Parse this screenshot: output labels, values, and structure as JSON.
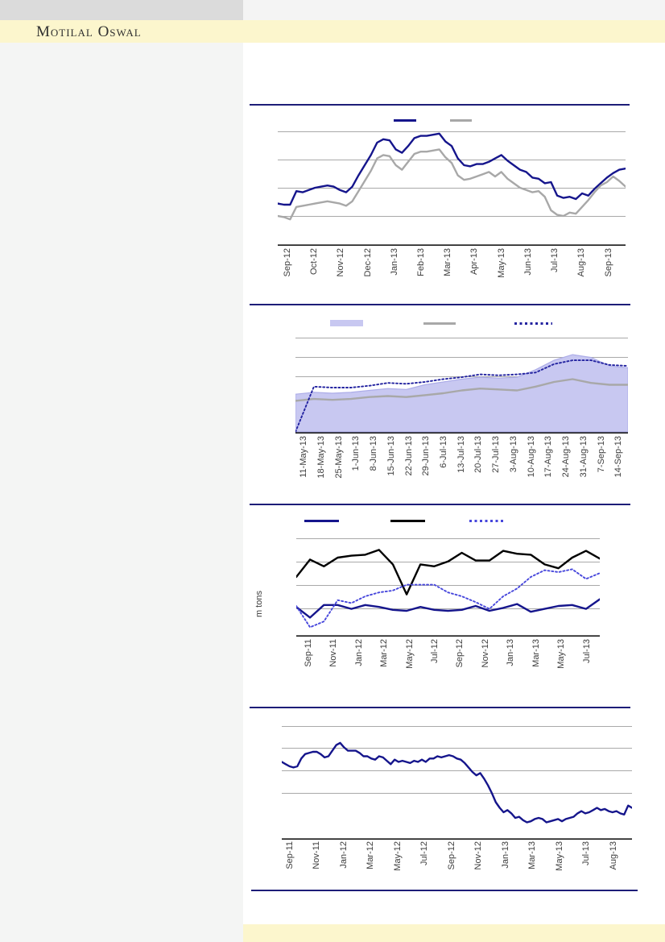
{
  "brand": {
    "name": "Motilal Oswal"
  },
  "palette": {
    "navy": "#15158c",
    "gray": "#a8a8a8",
    "black": "#000000",
    "dotted_navy": "#2323a0",
    "dotted_blue": "#4747dc",
    "lavender": "#c8c8f1",
    "lavender_edge": "#adade8",
    "gridline": "#a9a9a9",
    "axis_black": "#1a1a1a",
    "separator_navy": "#1d1d78",
    "band_yellow": "#fcf6cd",
    "sidebar_gray": "#f4f5f4",
    "top_block_gray": "#dbdbdb"
  },
  "chart_data": [
    {
      "type": "line",
      "title": "",
      "grid": true,
      "legend_position": "top",
      "legend_swatches": [
        "navy-line",
        "gray-line"
      ],
      "y_axis_tick_labels_visible": false,
      "ylim": [
        0,
        100
      ],
      "x_labels": [
        "Sep-12",
        "Oct-12",
        "Nov-12",
        "Dec-12",
        "Jan-13",
        "Feb-13",
        "Mar-13",
        "Apr-13",
        "May-13",
        "Jun-13",
        "Jul-13",
        "Aug-13",
        "Sep-13"
      ],
      "series": [
        {
          "id": "navy-line",
          "style": "solid",
          "color": "navy",
          "values": [
            36,
            35,
            35,
            47,
            46,
            48,
            50,
            51,
            52,
            51,
            48,
            46,
            51,
            61,
            70,
            79,
            90,
            93,
            92,
            84,
            81,
            87,
            94,
            96,
            96,
            97,
            98,
            91,
            87,
            76,
            70,
            69,
            71,
            71,
            73,
            76,
            79,
            74,
            70,
            66,
            64,
            59,
            58,
            54,
            55,
            43,
            41,
            42,
            40,
            45,
            43,
            49,
            54,
            59,
            63,
            66,
            67
          ]
        },
        {
          "id": "gray-line",
          "style": "solid",
          "color": "gray",
          "values": [
            25,
            24,
            22,
            33,
            34,
            35,
            36,
            37,
            38,
            37,
            36,
            34,
            38,
            47,
            56,
            65,
            76,
            79,
            78,
            70,
            66,
            73,
            80,
            82,
            82,
            83,
            84,
            77,
            72,
            61,
            57,
            58,
            60,
            62,
            64,
            60,
            64,
            58,
            54,
            50,
            48,
            46,
            47,
            42,
            30,
            26,
            25,
            28,
            27,
            33,
            39,
            46,
            52,
            55,
            60,
            56,
            51
          ]
        }
      ]
    },
    {
      "type": "area",
      "title": "",
      "grid": true,
      "legend_position": "top",
      "legend_swatches": [
        "lavender-area",
        "gray-line",
        "dotted-navy-line"
      ],
      "y_axis_tick_labels_visible": false,
      "ylim": [
        0,
        100
      ],
      "x_labels": [
        "11-May-13",
        "18-May-13",
        "25-May-13",
        "1-Jun-13",
        "8-Jun-13",
        "15-Jun-13",
        "22-Jun-13",
        "29-Jun-13",
        "6-Jul-13",
        "13-Jul-13",
        "20-Jul-13",
        "27-Jul-13",
        "3-Aug-13",
        "10-Aug-13",
        "17-Aug-13",
        "24-Aug-13",
        "31-Aug-13",
        "7-Sep-13",
        "14-Sep-13"
      ],
      "series": [
        {
          "id": "lavender-area",
          "style": "area",
          "color": "lavender",
          "values": [
            40,
            42,
            41,
            42,
            44,
            46,
            45,
            50,
            53,
            56,
            58,
            57,
            58,
            66,
            76,
            82,
            79,
            70,
            68
          ]
        },
        {
          "id": "gray-line",
          "style": "solid",
          "color": "gray",
          "values": [
            33,
            35,
            34,
            35,
            37,
            38,
            37,
            39,
            41,
            44,
            46,
            45,
            44,
            48,
            53,
            56,
            52,
            50,
            50
          ]
        },
        {
          "id": "dotted-navy-line",
          "style": "dotted",
          "color": "dotted_navy",
          "values": [
            0,
            48,
            47,
            47,
            49,
            52,
            51,
            53,
            56,
            58,
            61,
            60,
            61,
            63,
            72,
            76,
            76,
            71,
            70
          ]
        }
      ]
    },
    {
      "type": "line",
      "title": "",
      "grid": true,
      "ylabel": "m tons",
      "legend_position": "top",
      "legend_swatches": [
        "navy-line",
        "black-line",
        "dotted-blue-line"
      ],
      "y_axis_tick_labels_visible": false,
      "ylim": [
        0,
        100
      ],
      "x_labels": [
        "Sep-11",
        "Nov-11",
        "Jan-12",
        "Mar-12",
        "May-12",
        "Jul-12",
        "Sep-12",
        "Nov-12",
        "Jan-13",
        "Mar-13",
        "May-13",
        "Jul-13"
      ],
      "series": [
        {
          "id": "navy-line",
          "style": "solid",
          "color": "navy",
          "values": [
            29,
            18,
            31,
            31,
            27,
            31,
            29,
            26,
            25,
            29,
            26,
            25,
            26,
            30,
            25,
            28,
            32,
            24,
            27,
            30,
            31,
            27,
            37
          ]
        },
        {
          "id": "black-line",
          "style": "solid",
          "color": "black",
          "values": [
            60,
            78,
            71,
            80,
            82,
            83,
            88,
            73,
            42,
            73,
            71,
            76,
            85,
            77,
            77,
            87,
            84,
            83,
            73,
            69,
            80,
            87,
            79
          ]
        },
        {
          "id": "dotted-blue-line",
          "style": "dotted",
          "color": "dotted_blue",
          "values": [
            30,
            8,
            14,
            36,
            33,
            40,
            44,
            46,
            52,
            52,
            52,
            44,
            40,
            34,
            27,
            40,
            48,
            60,
            67,
            65,
            68,
            58,
            64
          ]
        }
      ]
    },
    {
      "type": "line",
      "title": "",
      "grid": true,
      "legend_position": "none",
      "legend_swatches": [],
      "y_axis_tick_labels_visible": false,
      "ylim": [
        0,
        100
      ],
      "x_labels": [
        "Sep-11",
        "Nov-11",
        "Jan-12",
        "Mar-12",
        "May-12",
        "Jul-12",
        "Sep-12",
        "Nov-12",
        "Jan-13",
        "Mar-13",
        "May-13",
        "Jul-13",
        "Aug-13"
      ],
      "series": [
        {
          "id": "navy-line",
          "style": "solid",
          "color": "navy",
          "values": [
            68,
            66,
            64,
            63,
            64,
            71,
            75,
            76,
            77,
            77,
            75,
            72,
            73,
            78,
            83,
            85,
            81,
            78,
            78,
            78,
            76,
            73,
            73,
            71,
            70,
            73,
            72,
            69,
            66,
            70,
            68,
            69,
            68,
            67,
            69,
            68,
            70,
            68,
            71,
            71,
            73,
            72,
            73,
            74,
            73,
            71,
            70,
            67,
            63,
            59,
            56,
            58,
            53,
            47,
            40,
            32,
            27,
            23,
            25,
            22,
            18,
            19,
            16,
            14,
            15,
            17,
            18,
            17,
            14,
            15,
            16,
            17,
            15,
            17,
            18,
            19,
            22,
            24,
            22,
            23,
            25,
            27,
            25,
            26,
            24,
            23,
            24,
            22,
            21,
            29,
            27
          ]
        }
      ]
    }
  ]
}
